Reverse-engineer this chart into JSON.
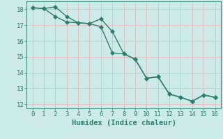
{
  "line1_x": [
    0,
    1,
    2,
    3,
    4,
    5,
    6,
    7,
    8,
    9,
    10,
    11,
    12,
    13,
    14,
    15,
    16
  ],
  "line1_y": [
    18.1,
    18.05,
    18.15,
    17.55,
    17.15,
    17.1,
    17.4,
    16.6,
    15.2,
    14.85,
    13.65,
    13.75,
    12.65,
    12.45,
    12.2,
    12.6,
    12.45
  ],
  "line2_x": [
    0,
    1,
    2,
    3,
    4,
    5,
    6,
    7,
    8,
    9,
    10,
    11,
    12,
    13,
    14,
    15,
    16
  ],
  "line2_y": [
    18.1,
    18.05,
    17.55,
    17.2,
    17.15,
    17.1,
    16.9,
    15.25,
    15.2,
    14.85,
    13.65,
    13.75,
    12.65,
    12.45,
    12.2,
    12.6,
    12.45
  ],
  "line_color": "#2e7d6e",
  "bg_color": "#cceae7",
  "grid_color": "#e8b8b8",
  "xlabel": "Humidex (Indice chaleur)",
  "xlim": [
    -0.5,
    16.5
  ],
  "ylim": [
    11.75,
    18.5
  ],
  "yticks": [
    12,
    13,
    14,
    15,
    16,
    17,
    18
  ],
  "xticks": [
    0,
    1,
    2,
    3,
    4,
    5,
    6,
    7,
    8,
    9,
    10,
    11,
    12,
    13,
    14,
    15,
    16
  ],
  "markersize": 3,
  "linewidth": 1.0,
  "xlabel_fontsize": 7.5,
  "tick_fontsize": 6.5,
  "tick_color": "#2e7d6e",
  "label_color": "#2e7d6e"
}
